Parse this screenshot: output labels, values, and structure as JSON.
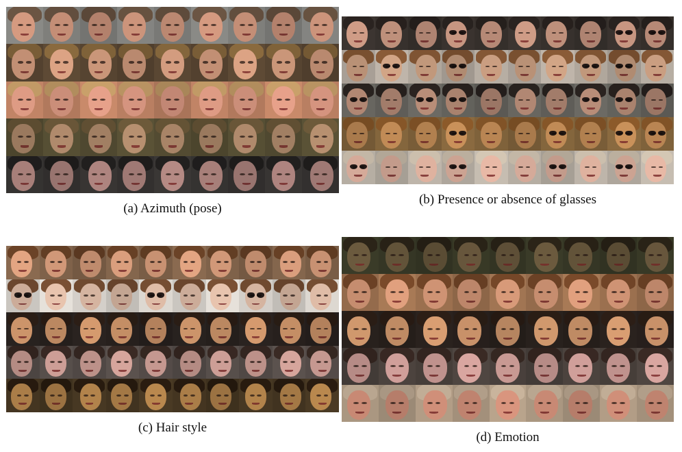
{
  "panels": [
    {
      "id": "a",
      "caption": "(a) Azimuth (pose)",
      "cols": 9,
      "rows": [
        {
          "skin": "#d59a80",
          "hair": "#6b5543",
          "bg": "#8a8a86",
          "glasses": []
        },
        {
          "skin": "#dca384",
          "hair": "#8a6a3e",
          "bg": "#5e4a35",
          "glasses": []
        },
        {
          "skin": "#e7a18a",
          "hair": "#c9a06a",
          "bg": "#c98a6a",
          "glasses": []
        },
        {
          "skin": "#b79070",
          "hair": "#6d5a3a",
          "bg": "#5a5236",
          "glasses": []
        },
        {
          "skin": "#b58a84",
          "hair": "#22201f",
          "bg": "#3a3735",
          "glasses": []
        }
      ]
    },
    {
      "id": "b",
      "caption": "(b) Presence or absence of glasses",
      "cols": 10,
      "rows": [
        {
          "skin": "#cf9c86",
          "hair": "#2a2320",
          "bg": "#3c3531",
          "glasses": [
            3,
            8,
            9
          ]
        },
        {
          "skin": "#d2a586",
          "hair": "#8a5b37",
          "bg": "#bfb5aa",
          "glasses": [
            1,
            3,
            7,
            8
          ]
        },
        {
          "skin": "#b88d78",
          "hair": "#2a2320",
          "bg": "#6c6a64",
          "glasses": [
            0,
            2,
            3,
            7,
            8
          ]
        },
        {
          "skin": "#c9915a",
          "hair": "#8c5a2a",
          "bg": "#8a6a40",
          "glasses": [
            3,
            6,
            8,
            9
          ]
        },
        {
          "skin": "#e8b9a6",
          "hair": "#d4c7b4",
          "bg": "#c6bdb1",
          "glasses": [
            0,
            3,
            6,
            8
          ]
        }
      ]
    },
    {
      "id": "c",
      "caption": "(c) Hair style",
      "cols": 10,
      "rows": [
        {
          "skin": "#e3a582",
          "hair": "#6b4327",
          "bg": "#8a6a50",
          "glasses": []
        },
        {
          "skin": "#e8c4ae",
          "hair": "#7a5034",
          "bg": "#e6e1da",
          "glasses": [
            0,
            4,
            7
          ]
        },
        {
          "skin": "#d59a6e",
          "hair": "#2c1e16",
          "bg": "#2a2320",
          "glasses": []
        },
        {
          "skin": "#d6a59c",
          "hair": "#3a2a24",
          "bg": "#5b524e",
          "glasses": []
        },
        {
          "skin": "#b9884e",
          "hair": "#2a1c10",
          "bg": "#4a3a24",
          "glasses": []
        }
      ]
    },
    {
      "id": "d",
      "caption": "(d) Emotion",
      "cols": 9,
      "rows": [
        {
          "skin": "#6b5a3e",
          "hair": "#2b2418",
          "bg": "#3a3b28",
          "glasses": []
        },
        {
          "skin": "#e1a07e",
          "hair": "#7a4a2a",
          "bg": "#a87a56",
          "glasses": []
        },
        {
          "skin": "#d99e72",
          "hair": "#2c1e16",
          "bg": "#2a221e",
          "glasses": []
        },
        {
          "skin": "#d9a6a0",
          "hair": "#3a2a24",
          "bg": "#4f4641",
          "glasses": []
        },
        {
          "skin": "#d9957e",
          "hair": "#c9b49c",
          "bg": "#b9a48c",
          "glasses": []
        }
      ]
    }
  ]
}
